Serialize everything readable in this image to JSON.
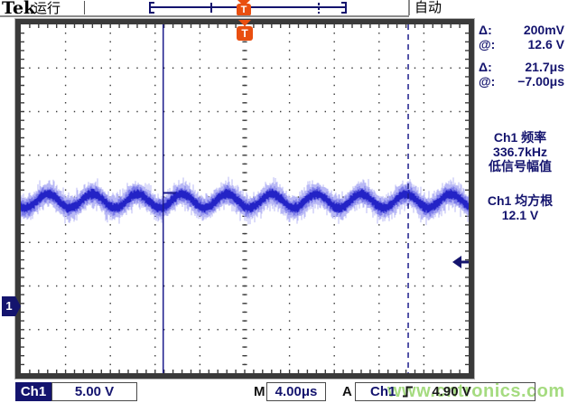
{
  "header": {
    "brand": "Tek",
    "acq_status": "运行",
    "trigger_status": "自动",
    "trigger_marker": "T"
  },
  "graticule": {
    "channel_badge": "1",
    "trigger_badge": "T"
  },
  "right_panel": {
    "cursor_readouts": [
      {
        "label": "Δ:",
        "value": "200mV"
      },
      {
        "label": "@:",
        "value": "12.6 V"
      },
      {
        "label": "Δ:",
        "value": "21.7μs"
      },
      {
        "label": "@:",
        "value": "−7.00μs"
      }
    ],
    "measurement1": {
      "title": "Ch1 频率",
      "value": "336.7kHz",
      "note": "低信号幅值"
    },
    "measurement2": {
      "title": "Ch1 均方根",
      "value": "12.1 V"
    }
  },
  "bottom_bar": {
    "channel": "Ch1",
    "vertical_scale": "5.00 V",
    "timebase_label": "M",
    "timebase": "4.00μs",
    "trigger_source_label": "A",
    "trigger_source": "Ch1",
    "trigger_level": "4.90 V"
  },
  "watermark": "www.cntronics.com",
  "colors": {
    "accent_navy": "#14146e",
    "grid": "#3d3d3d",
    "waveform_core": "#2323c6",
    "waveform_mid": "#7b7be8",
    "waveform_halo": "#b8b8f5",
    "cursor": "#1c1c8c",
    "trigger_orange": "#e94f10",
    "watermark_green": "#a5db80"
  },
  "chart_data": {
    "type": "line",
    "title": "Ch1 waveform (noisy sine, persistence display)",
    "x_axis": {
      "units": "μs",
      "time_per_div_us": 4,
      "divisions": 10
    },
    "y_axis": {
      "units": "V",
      "volts_per_div": 5,
      "divisions": 8
    },
    "signal": {
      "shape": "sine-with-noise",
      "mean_v": 12.1,
      "amplitude_v": 0.8,
      "noise_peak_v": 0.9,
      "period_divs": 1,
      "frequency_readout": "336.7kHz",
      "rms_readout": "12.1 V",
      "frequency_qualifier": "低信号幅值"
    },
    "cursors": {
      "cursor1_style": "solid-vertical",
      "cursor1_div_from_left": 3.18,
      "cursor2_style": "dashed-vertical",
      "cursor2_div_from_left": 8.65,
      "delta_amplitude": "200mV",
      "amplitude_at": "12.6 V",
      "delta_time": "21.7μs",
      "time_at": "−7.00μs"
    },
    "trigger": {
      "source": "Ch1",
      "slope": "rising",
      "level": "4.90 V",
      "mode": "自动"
    },
    "ground_level_divs_from_top": 6.47
  }
}
